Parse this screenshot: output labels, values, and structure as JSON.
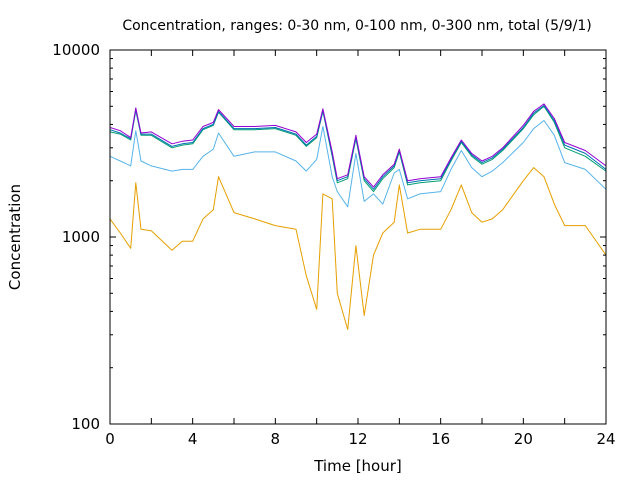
{
  "chart_data": {
    "type": "line",
    "title": "Concentration, ranges: 0-30 nm, 0-100 nm, 0-300 nm, total (5/9/1)",
    "xlabel": "Time [hour]",
    "ylabel": "Concentration",
    "xlim": [
      0,
      24
    ],
    "ylim": [
      100,
      10000
    ],
    "yscale": "log",
    "grid": false,
    "legend": "none",
    "x_ticks": [
      "0",
      "4",
      "8",
      "12",
      "16",
      "20",
      "24"
    ],
    "y_ticks": [
      "100",
      "1000",
      "10000"
    ],
    "x": [
      0,
      0.5,
      1,
      1.25,
      1.5,
      2,
      3,
      3.5,
      4,
      4.5,
      5,
      5.25,
      6,
      7,
      8,
      9,
      9.5,
      10,
      10.3,
      10.75,
      11,
      11.5,
      11.9,
      12.3,
      12.75,
      13.2,
      13.75,
      14,
      14.4,
      15,
      16,
      16.5,
      17,
      17.5,
      18,
      18.5,
      19,
      20,
      20.5,
      21,
      21.5,
      22,
      23,
      24
    ],
    "series": [
      {
        "color": "#e69f00",
        "values": [
          1250,
          1050,
          870,
          1950,
          1100,
          1080,
          850,
          950,
          950,
          1250,
          1400,
          2100,
          1350,
          1250,
          1150,
          1100,
          620,
          410,
          1700,
          1600,
          500,
          320,
          900,
          380,
          800,
          1050,
          1200,
          1900,
          1050,
          1100,
          1100,
          1400,
          1900,
          1350,
          1200,
          1250,
          1400,
          2000,
          2350,
          2100,
          1500,
          1150,
          1150,
          800
        ]
      },
      {
        "color": "#56b4e9",
        "values": [
          2700,
          2550,
          2400,
          3700,
          2550,
          2400,
          2250,
          2300,
          2300,
          2700,
          2950,
          3600,
          2700,
          2850,
          2850,
          2550,
          2250,
          2600,
          3900,
          2100,
          1750,
          1450,
          2800,
          1550,
          1700,
          1500,
          2200,
          2300,
          1600,
          1700,
          1750,
          2300,
          2900,
          2350,
          2100,
          2250,
          2500,
          3200,
          3800,
          4200,
          3500,
          2500,
          2300,
          1800
        ]
      },
      {
        "color": "#009e73",
        "values": [
          3650,
          3550,
          3300,
          4750,
          3500,
          3500,
          3000,
          3100,
          3150,
          3750,
          3950,
          4650,
          3750,
          3750,
          3800,
          3500,
          3050,
          3400,
          4700,
          2700,
          1950,
          2050,
          3350,
          2000,
          1750,
          2050,
          2350,
          2850,
          1900,
          1950,
          2000,
          2550,
          3200,
          2700,
          2450,
          2600,
          2900,
          3800,
          4500,
          5000,
          4100,
          3000,
          2700,
          2250
        ]
      },
      {
        "color": "#0072b2",
        "values": [
          3750,
          3600,
          3350,
          4800,
          3550,
          3550,
          3050,
          3150,
          3200,
          3800,
          4000,
          4700,
          3800,
          3800,
          3850,
          3550,
          3100,
          3450,
          4750,
          2750,
          2000,
          2100,
          3400,
          2050,
          1800,
          2100,
          2400,
          2900,
          1950,
          2000,
          2050,
          2600,
          3250,
          2750,
          2500,
          2650,
          2950,
          3850,
          4600,
          5050,
          4200,
          3100,
          2800,
          2300
        ]
      },
      {
        "color": "#9400d3",
        "values": [
          3850,
          3700,
          3400,
          4900,
          3600,
          3650,
          3150,
          3250,
          3300,
          3900,
          4100,
          4800,
          3900,
          3900,
          3950,
          3650,
          3200,
          3550,
          4850,
          2850,
          2050,
          2150,
          3500,
          2100,
          1850,
          2150,
          2450,
          2950,
          2000,
          2050,
          2100,
          2650,
          3300,
          2800,
          2550,
          2700,
          3000,
          3950,
          4700,
          5150,
          4300,
          3200,
          2900,
          2400
        ]
      }
    ]
  }
}
